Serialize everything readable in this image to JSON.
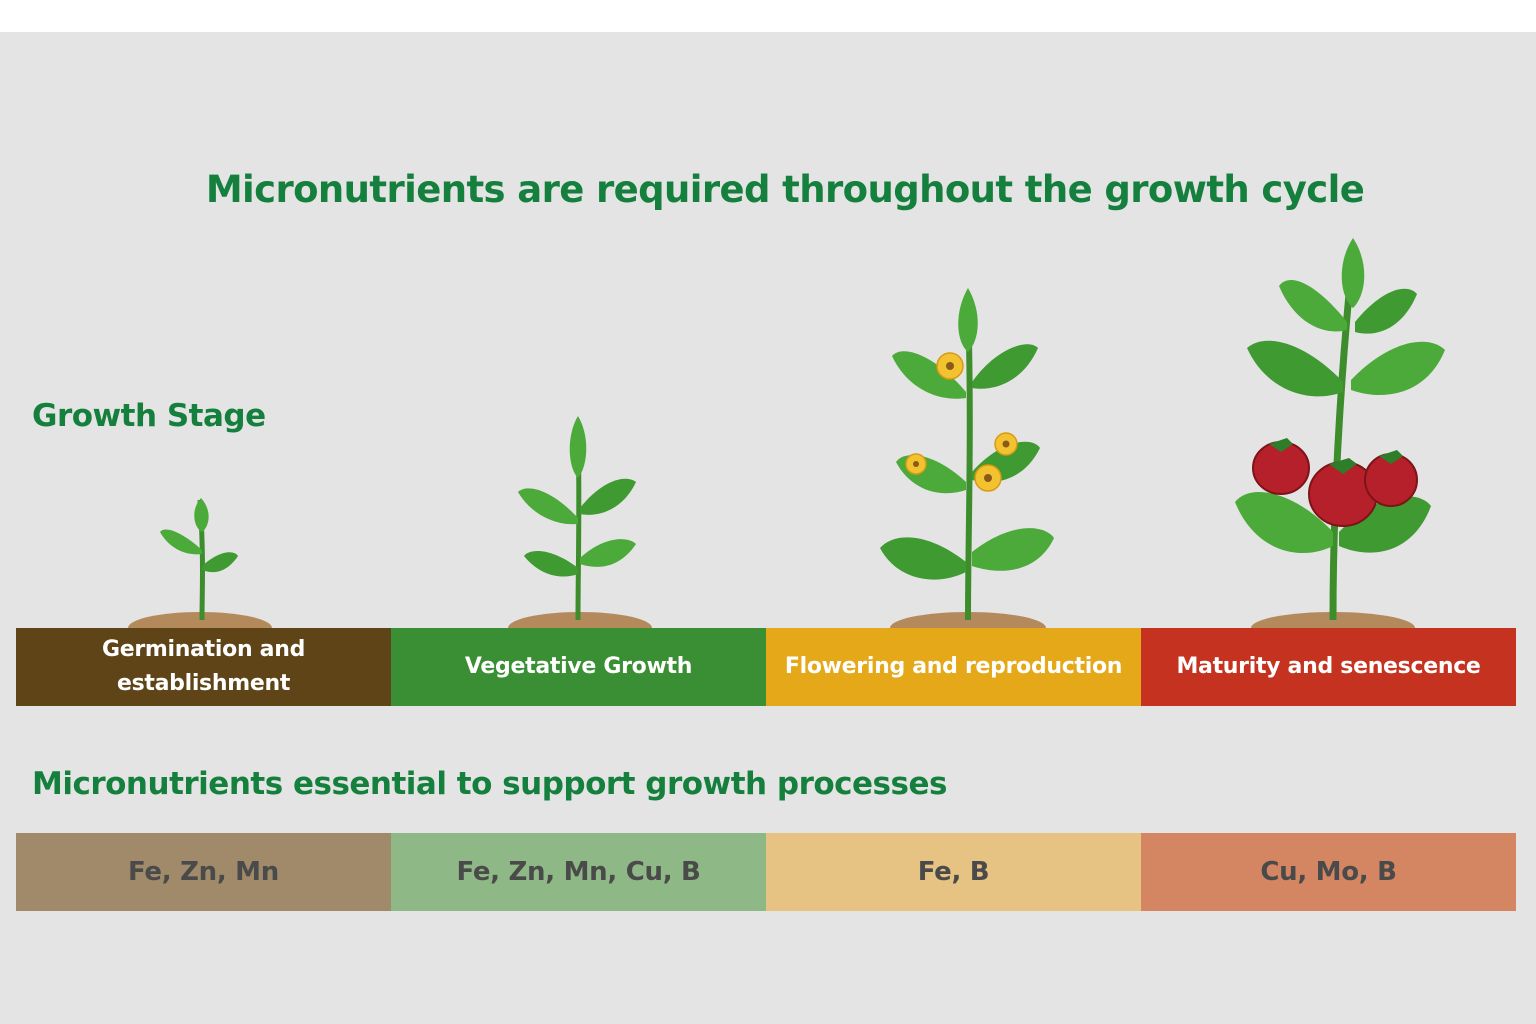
{
  "title": "Micronutrients are required throughout the growth cycle",
  "growth_stage_label": "Growth Stage",
  "micronutrients_label": "Micronutrients essential to support growth processes",
  "stages": [
    {
      "label": "Germination and\nestablishment",
      "color": "#5e4416"
    },
    {
      "label": "Vegetative Growth",
      "color": "#3a8f34"
    },
    {
      "label": "Flowering and reproduction",
      "color": "#e4a818"
    },
    {
      "label": "Maturity and senescence",
      "color": "#c5321f"
    }
  ],
  "nutrients": [
    {
      "label": "Fe, Zn, Mn",
      "color": "#a08a6a"
    },
    {
      "label": "Fe, Zn, Mn, Cu, B",
      "color": "#8fb887"
    },
    {
      "label": "Fe, B",
      "color": "#e6c382"
    },
    {
      "label": "Cu, Mo, B",
      "color": "#d48562"
    }
  ],
  "colors": {
    "title": "#15803d",
    "leaf": "#4caa3a",
    "leaf_dark": "#2e7d2a",
    "soil": "#b48a5c",
    "flower": "#f2c230",
    "fruit": "#b5202a",
    "background": "#e4e4e4"
  }
}
